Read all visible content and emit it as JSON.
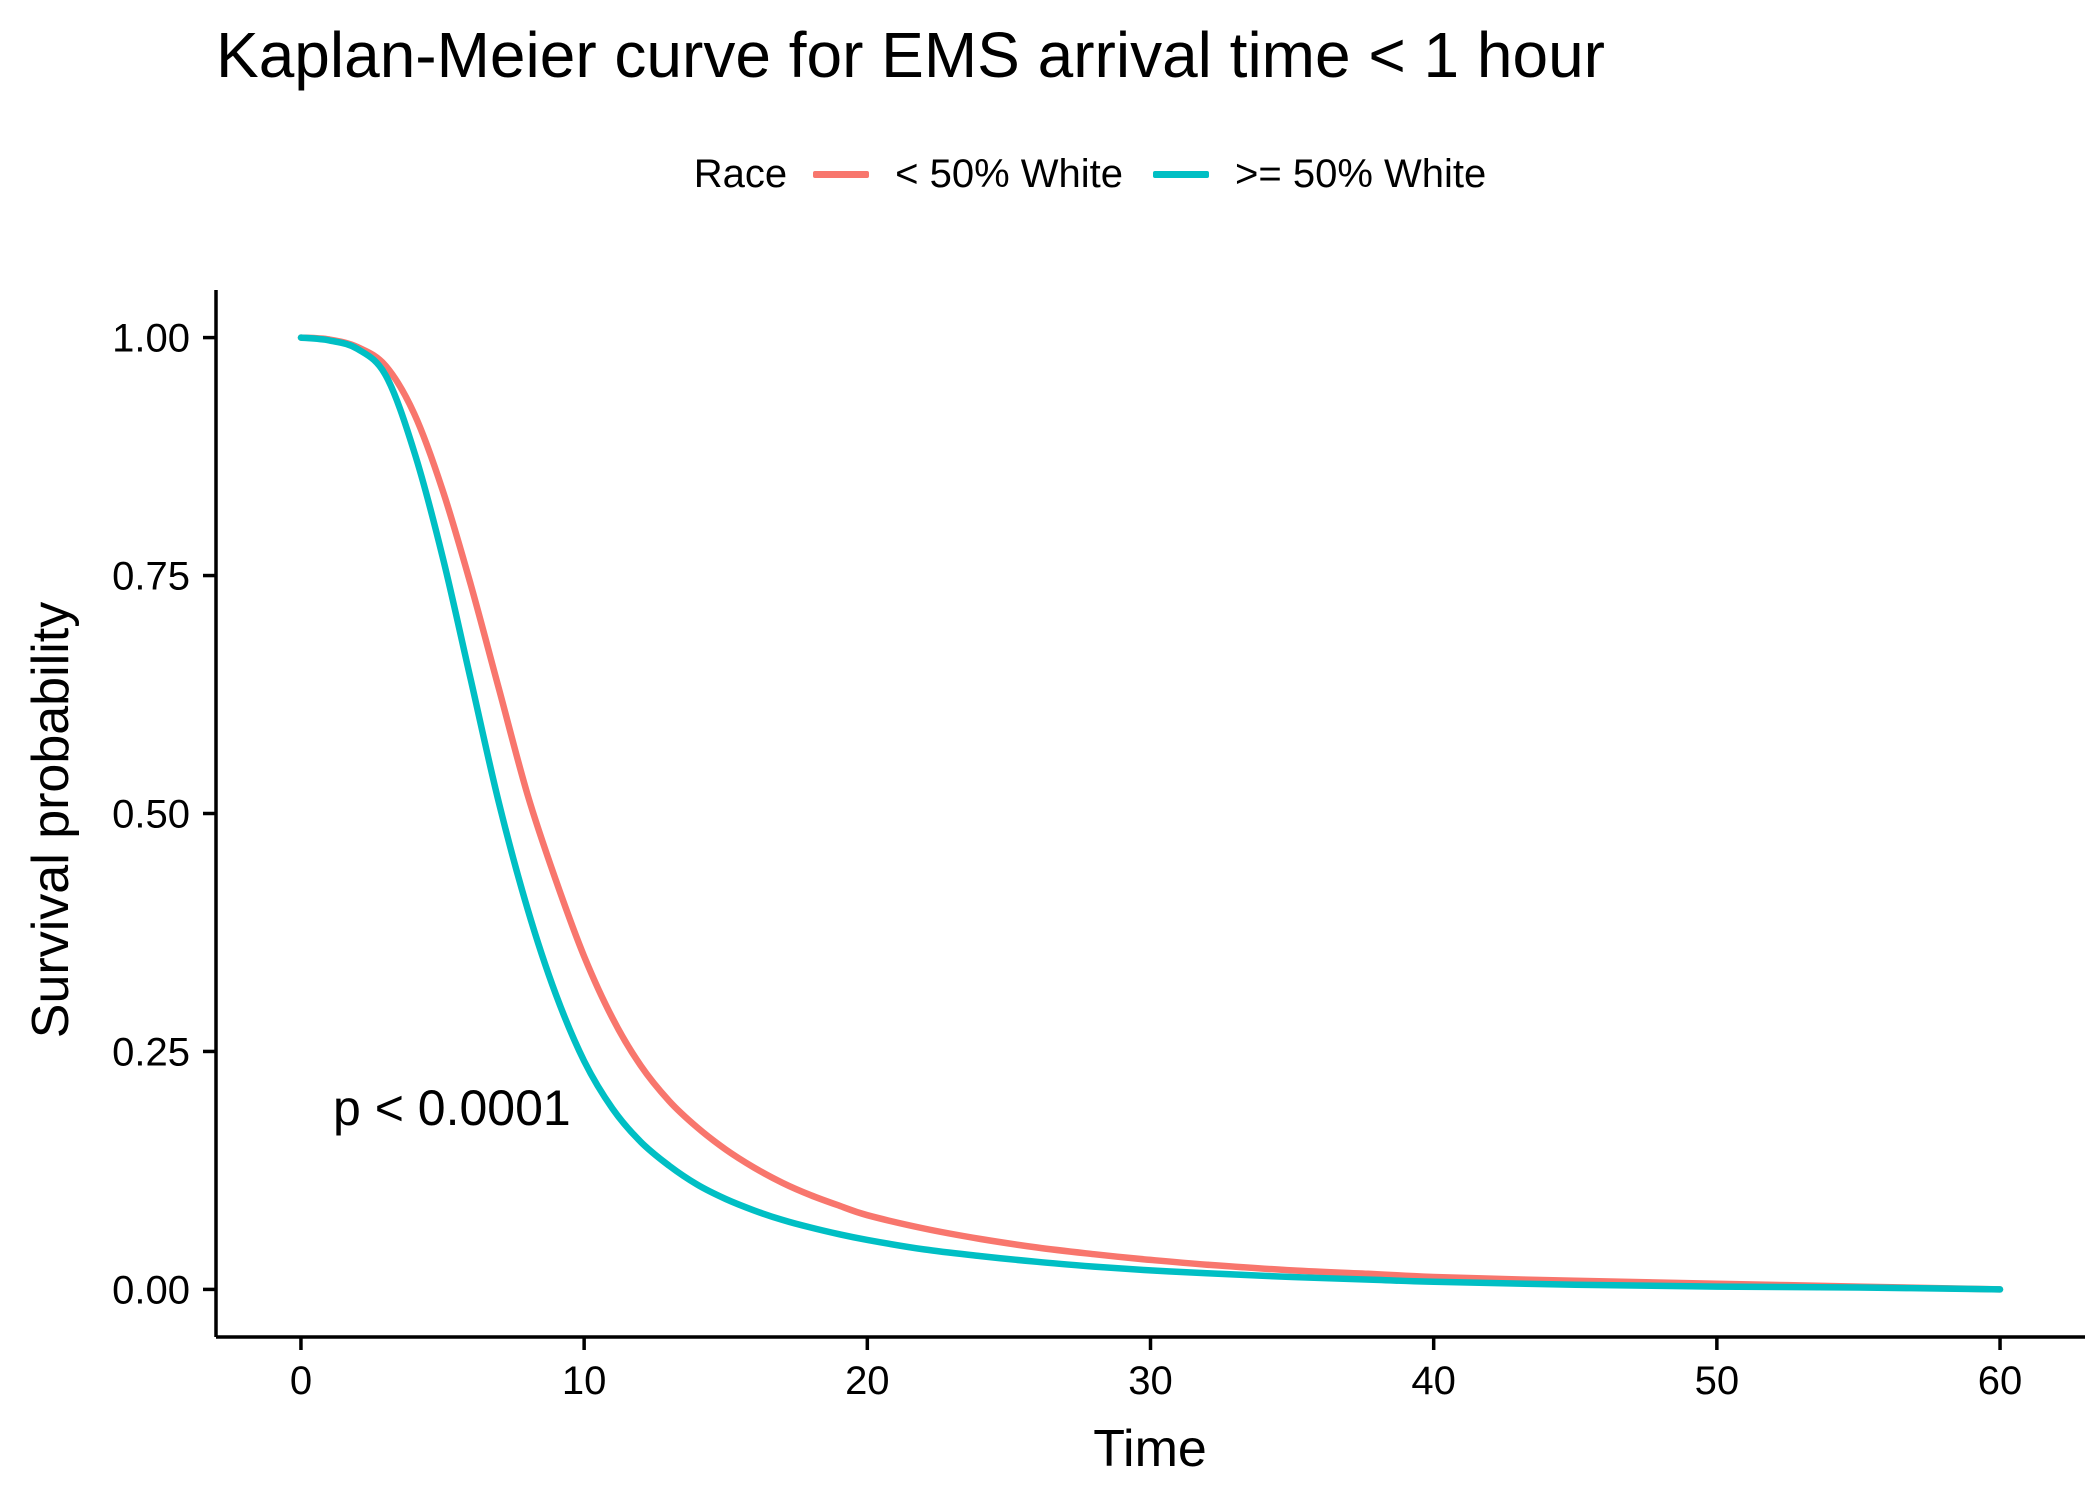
{
  "chart_data": {
    "type": "line",
    "title": "Kaplan-Meier curve for EMS arrival time < 1 hour",
    "xlabel": "Time",
    "ylabel": "Survival probability",
    "xlim": [
      -3,
      63
    ],
    "ylim": [
      -0.05,
      1.05
    ],
    "xticks": [
      0,
      10,
      20,
      30,
      40,
      50,
      60
    ],
    "xtick_labels": [
      "0",
      "10",
      "20",
      "30",
      "40",
      "50",
      "60"
    ],
    "yticks": [
      0,
      0.25,
      0.5,
      0.75,
      1
    ],
    "ytick_labels": [
      "0.00",
      "0.25",
      "0.50",
      "0.75",
      "1.00"
    ],
    "grid": false,
    "legend": {
      "title": "Race",
      "position": "top"
    },
    "annotation": "p < 0.0001",
    "series": [
      {
        "name": "< 50% White",
        "color": "#F8766D",
        "x": [
          0,
          1,
          2,
          3,
          4,
          5,
          6,
          7,
          8,
          9,
          10,
          11,
          12,
          13,
          14,
          15,
          16,
          17,
          18,
          19,
          20,
          22,
          24,
          26,
          28,
          30,
          32,
          35,
          38,
          40,
          45,
          50,
          55,
          60
        ],
        "y": [
          1.0,
          0.998,
          0.99,
          0.97,
          0.92,
          0.84,
          0.74,
          0.63,
          0.52,
          0.43,
          0.35,
          0.285,
          0.235,
          0.198,
          0.17,
          0.147,
          0.128,
          0.112,
          0.099,
          0.088,
          0.078,
          0.064,
          0.053,
          0.044,
          0.037,
          0.031,
          0.026,
          0.02,
          0.016,
          0.013,
          0.009,
          0.006,
          0.003,
          0.0
        ]
      },
      {
        "name": ">= 50% White",
        "color": "#00BFC4",
        "x": [
          0,
          1,
          2,
          3,
          4,
          5,
          6,
          7,
          8,
          9,
          10,
          11,
          12,
          13,
          14,
          15,
          16,
          17,
          18,
          19,
          20,
          22,
          24,
          26,
          28,
          30,
          32,
          35,
          38,
          40,
          45,
          50,
          55,
          60
        ],
        "y": [
          1.0,
          0.997,
          0.988,
          0.96,
          0.88,
          0.77,
          0.64,
          0.51,
          0.4,
          0.31,
          0.24,
          0.19,
          0.155,
          0.13,
          0.11,
          0.095,
          0.083,
          0.073,
          0.065,
          0.058,
          0.052,
          0.042,
          0.035,
          0.029,
          0.024,
          0.02,
          0.017,
          0.013,
          0.01,
          0.008,
          0.005,
          0.003,
          0.002,
          0.0
        ]
      }
    ]
  }
}
